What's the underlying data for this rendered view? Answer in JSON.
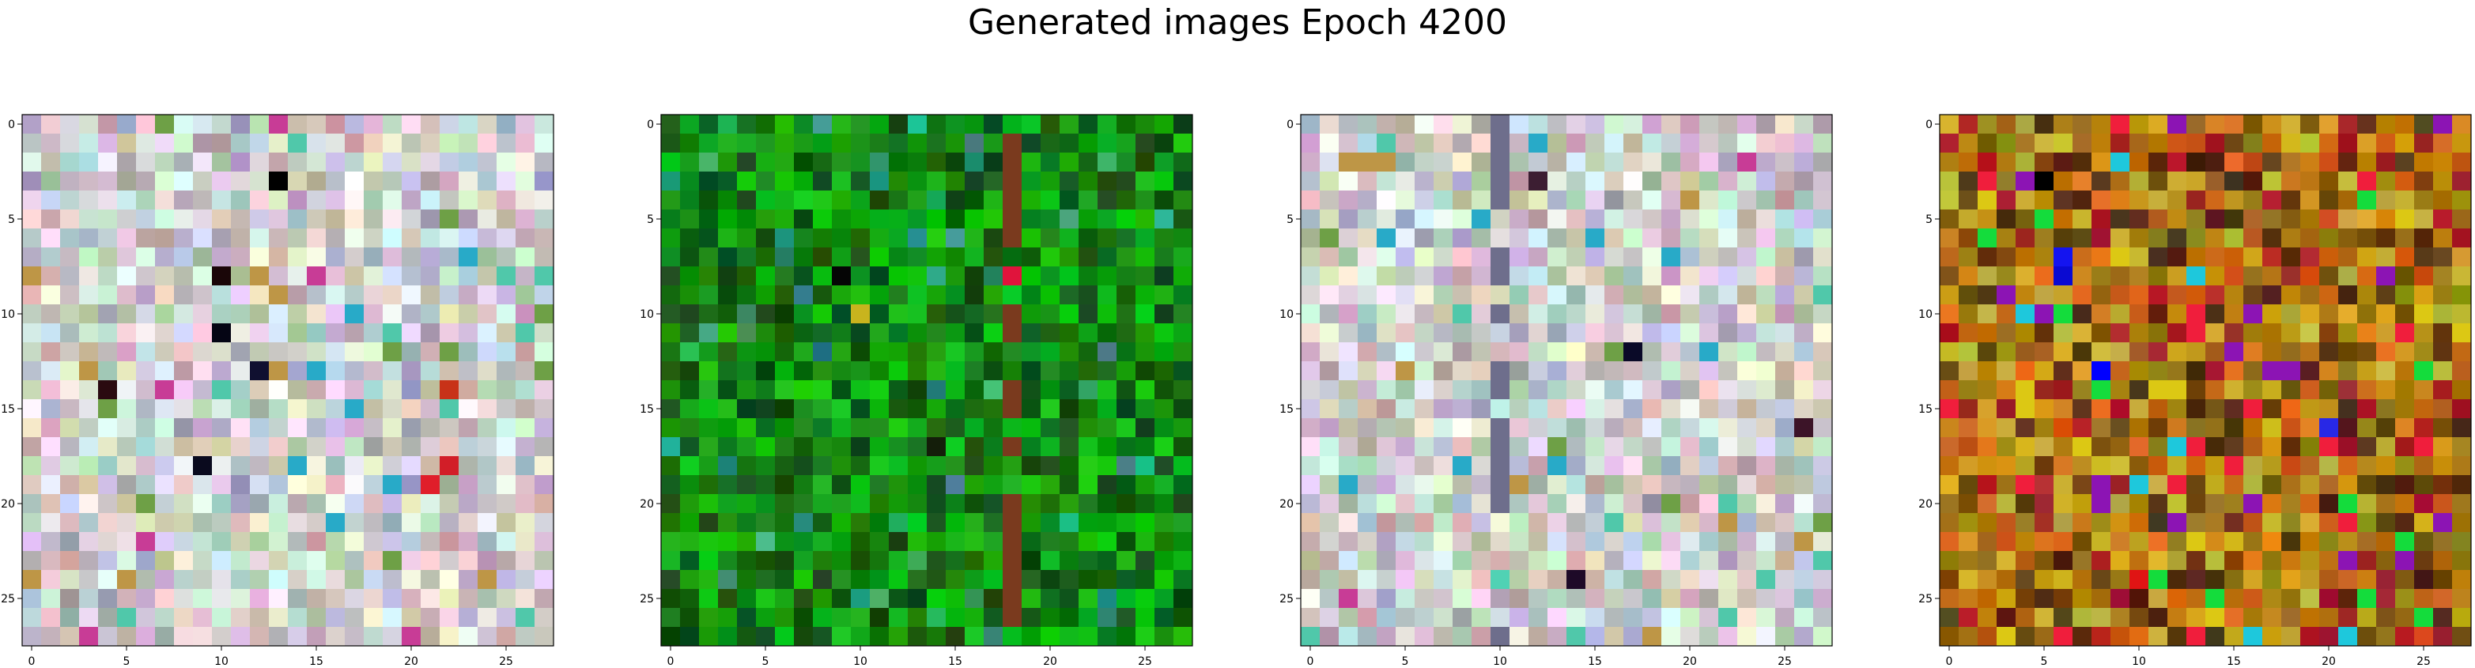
{
  "figure": {
    "title": "Generated images Epoch 4200"
  },
  "chart_data": [
    {
      "type": "heatmap",
      "grid_size": 28,
      "palette": "pastel",
      "x_ticks": [
        "0",
        "5",
        "10",
        "15",
        "20",
        "25"
      ],
      "y_ticks": [
        "0",
        "5",
        "10",
        "15",
        "20",
        "25"
      ],
      "xlim": [
        0,
        27
      ],
      "ylim": [
        27,
        0
      ],
      "seed": 11,
      "highlights": [
        {
          "row": 3,
          "col": 13,
          "color": "#000000"
        },
        {
          "row": 8,
          "col": 10,
          "color": "#1a0608"
        },
        {
          "row": 11,
          "col": 10,
          "color": "#050514"
        },
        {
          "row": 13,
          "col": 12,
          "color": "#101030"
        },
        {
          "row": 14,
          "col": 4,
          "color": "#2a0a10"
        },
        {
          "row": 14,
          "col": 22,
          "color": "#c83218"
        },
        {
          "row": 18,
          "col": 9,
          "color": "#0a0a1e"
        },
        {
          "row": 18,
          "col": 22,
          "color": "#d21e28"
        },
        {
          "row": 19,
          "col": 21,
          "color": "#e01e2a"
        }
      ]
    },
    {
      "type": "heatmap",
      "grid_size": 28,
      "palette": "green",
      "x_ticks": [
        "0",
        "5",
        "10",
        "15",
        "20",
        "25"
      ],
      "y_ticks": [
        "0",
        "5",
        "10",
        "15",
        "20",
        "25"
      ],
      "xlim": [
        0,
        27
      ],
      "ylim": [
        27,
        0
      ],
      "seed": 29,
      "column_stripe": {
        "col": 18,
        "color": "#7a3a1e"
      },
      "highlights": [
        {
          "row": 8,
          "col": 18,
          "color": "#e0143c"
        },
        {
          "row": 8,
          "col": 9,
          "color": "#050505"
        },
        {
          "row": 10,
          "col": 10,
          "color": "#c8b41e"
        },
        {
          "row": 12,
          "col": 8,
          "color": "#1e6e82"
        },
        {
          "row": 17,
          "col": 14,
          "color": "#141e0a"
        }
      ]
    },
    {
      "type": "heatmap",
      "grid_size": 28,
      "palette": "pastel",
      "x_ticks": [
        "0",
        "5",
        "10",
        "15",
        "20",
        "25"
      ],
      "y_ticks": [
        "0",
        "5",
        "10",
        "15",
        "20",
        "25"
      ],
      "xlim": [
        0,
        27
      ],
      "ylim": [
        27,
        0
      ],
      "seed": 47,
      "column_stripe": {
        "col": 10,
        "color": "#6e6e8c"
      },
      "highlights": [
        {
          "row": 3,
          "col": 12,
          "color": "#3c1e32"
        },
        {
          "row": 12,
          "col": 17,
          "color": "#0a0a28"
        },
        {
          "row": 24,
          "col": 10,
          "color": "#50d2b4"
        },
        {
          "row": 24,
          "col": 14,
          "color": "#1e0a28"
        },
        {
          "row": 16,
          "col": 26,
          "color": "#3c1428"
        }
      ]
    },
    {
      "type": "heatmap",
      "grid_size": 28,
      "palette": "vivid",
      "x_ticks": [
        "0",
        "5",
        "10",
        "15",
        "20",
        "25"
      ],
      "y_ticks": [
        "0",
        "5",
        "10",
        "15",
        "20",
        "25"
      ],
      "xlim": [
        0,
        27
      ],
      "ylim": [
        27,
        0
      ],
      "seed": 83,
      "highlights": [
        {
          "row": 7,
          "col": 6,
          "color": "#1414f0"
        },
        {
          "row": 8,
          "col": 6,
          "color": "#0a0ad2"
        },
        {
          "row": 13,
          "col": 8,
          "color": "#0000ff"
        },
        {
          "row": 16,
          "col": 20,
          "color": "#2828e6"
        },
        {
          "row": 24,
          "col": 10,
          "color": "#e01414"
        },
        {
          "row": 3,
          "col": 5,
          "color": "#000000"
        }
      ]
    }
  ]
}
